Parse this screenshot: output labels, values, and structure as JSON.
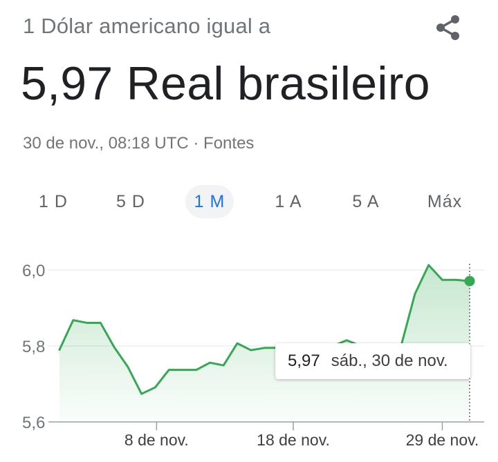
{
  "header": {
    "subtitle": "1 Dólar americano igual a",
    "value": "5,97 Real brasileiro",
    "timestamp": "30 de nov., 08:18 UTC",
    "separator": "·",
    "sources_link": "Fontes",
    "share_icon": "share-icon"
  },
  "tabs": [
    {
      "label": "1 D",
      "active": false
    },
    {
      "label": "5 D",
      "active": false
    },
    {
      "label": "1 M",
      "active": true
    },
    {
      "label": "1 A",
      "active": false
    },
    {
      "label": "5 A",
      "active": false
    },
    {
      "label": "Máx",
      "active": false
    }
  ],
  "tooltip": {
    "value": "5,97",
    "date": "sáb., 30 de nov."
  },
  "colors": {
    "line": "#34a853",
    "accent": "#1a73e8",
    "muted": "#70757a"
  },
  "chart_data": {
    "type": "line",
    "y_ticks": [
      "6,0",
      "5,8",
      "5,6"
    ],
    "y_tick_values": [
      6.0,
      5.8,
      5.6
    ],
    "x_ticks": [
      "8 de nov.",
      "18 de nov.",
      "29 de nov."
    ],
    "ylim": [
      5.6,
      6.04
    ],
    "series": [
      {
        "values": [
          5.79,
          5.868,
          5.861,
          5.861,
          5.797,
          5.745,
          5.674,
          5.691,
          5.737,
          5.737,
          5.737,
          5.756,
          5.749,
          5.807,
          5.789,
          5.795,
          5.795,
          5.789,
          5.788,
          5.79,
          5.8,
          5.815,
          5.801,
          5.79,
          5.789,
          5.802,
          5.937,
          6.013,
          5.974,
          5.974,
          5.971
        ]
      }
    ],
    "x_tick_index": [
      7,
      17,
      28
    ],
    "marker_index": 30,
    "grid": true
  }
}
